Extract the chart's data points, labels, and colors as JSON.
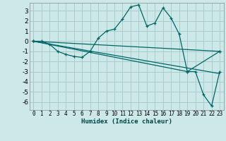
{
  "background_color": "#cce8e8",
  "grid_color": "#aacccc",
  "line_color": "#006666",
  "xlabel": "Humidex (Indice chaleur)",
  "ylim": [
    -6.8,
    3.8
  ],
  "xlim": [
    -0.5,
    23.5
  ],
  "yticks": [
    -6,
    -5,
    -4,
    -3,
    -2,
    -1,
    0,
    1,
    2,
    3
  ],
  "xticks": [
    0,
    1,
    2,
    3,
    4,
    5,
    6,
    7,
    8,
    9,
    10,
    11,
    12,
    13,
    14,
    15,
    16,
    17,
    18,
    19,
    20,
    21,
    22,
    23
  ],
  "lines": [
    {
      "x": [
        0,
        1,
        2,
        3,
        4,
        5,
        6,
        7,
        8,
        9,
        10,
        11,
        12,
        13,
        14,
        15,
        16,
        17,
        18,
        19,
        20,
        21,
        22,
        23
      ],
      "y": [
        0,
        0,
        -0.3,
        -1.0,
        -1.3,
        -1.5,
        -1.6,
        -1.0,
        0.3,
        1.0,
        1.2,
        2.2,
        3.4,
        3.6,
        1.5,
        1.8,
        3.3,
        2.3,
        0.7,
        -3.0,
        -3.0,
        -5.3,
        -6.4,
        -3.0
      ],
      "marker": true
    },
    {
      "x": [
        0,
        23
      ],
      "y": [
        0,
        -1.0
      ],
      "marker": true
    },
    {
      "x": [
        0,
        23
      ],
      "y": [
        0,
        -3.2
      ],
      "marker": false
    },
    {
      "x": [
        0,
        19,
        23
      ],
      "y": [
        0,
        -3.0,
        -1.0
      ],
      "marker": true
    }
  ]
}
